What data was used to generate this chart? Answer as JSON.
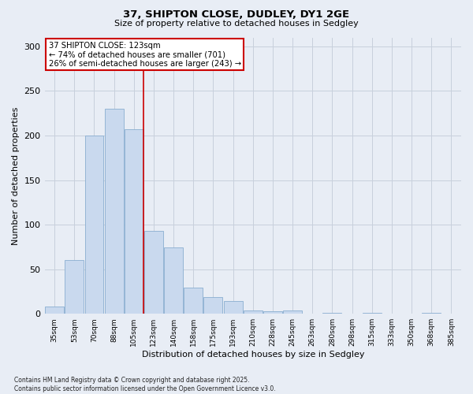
{
  "title1": "37, SHIPTON CLOSE, DUDLEY, DY1 2GE",
  "title2": "Size of property relative to detached houses in Sedgley",
  "xlabel": "Distribution of detached houses by size in Sedgley",
  "ylabel": "Number of detached properties",
  "categories": [
    "35sqm",
    "53sqm",
    "70sqm",
    "88sqm",
    "105sqm",
    "123sqm",
    "140sqm",
    "158sqm",
    "175sqm",
    "193sqm",
    "210sqm",
    "228sqm",
    "245sqm",
    "263sqm",
    "280sqm",
    "298sqm",
    "315sqm",
    "333sqm",
    "350sqm",
    "368sqm",
    "385sqm"
  ],
  "values": [
    8,
    60,
    200,
    230,
    207,
    93,
    74,
    29,
    19,
    14,
    4,
    3,
    4,
    0,
    1,
    0,
    1,
    0,
    0,
    1,
    0
  ],
  "bar_color": "#c9d9ee",
  "bar_edge_color": "#8aaed0",
  "grid_color": "#c8d0dc",
  "bg_color": "#e8edf5",
  "ax_bg_color": "#e8edf5",
  "red_line_index": 5,
  "annotation_text": "37 SHIPTON CLOSE: 123sqm\n← 74% of detached houses are smaller (701)\n26% of semi-detached houses are larger (243) →",
  "annotation_box_color": "#ffffff",
  "annotation_box_edge": "#cc0000",
  "red_line_color": "#cc0000",
  "ylim": [
    0,
    310
  ],
  "yticks": [
    0,
    50,
    100,
    150,
    200,
    250,
    300
  ],
  "footnote": "Contains HM Land Registry data © Crown copyright and database right 2025.\nContains public sector information licensed under the Open Government Licence v3.0."
}
